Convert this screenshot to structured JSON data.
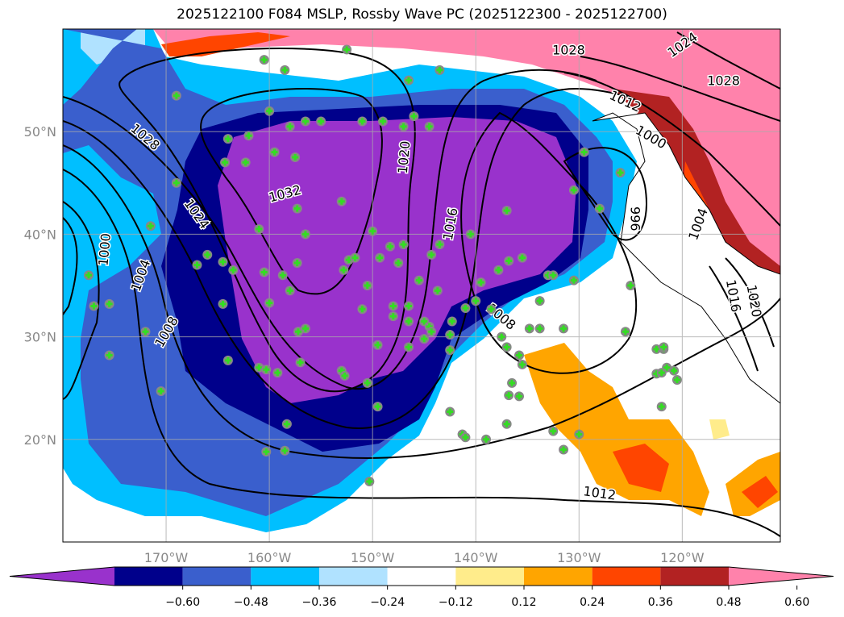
{
  "chart_data": {
    "type": "map-contour",
    "title": "2025122100 F084 MSLP, Rossby Wave PC (2025122300 - 2025122700)",
    "lon_range": [
      -180,
      -110.5
    ],
    "lat_range": [
      10,
      60
    ],
    "grid": true,
    "x_ticks": [
      {
        "lon": -170,
        "label": "170°W"
      },
      {
        "lon": -160,
        "label": "160°W"
      },
      {
        "lon": -150,
        "label": "150°W"
      },
      {
        "lon": -140,
        "label": "140°W"
      },
      {
        "lon": -130,
        "label": "130°W"
      },
      {
        "lon": -120,
        "label": "120°W"
      }
    ],
    "y_ticks": [
      {
        "lat": 50,
        "label": "50°N"
      },
      {
        "lat": 40,
        "label": "40°N"
      },
      {
        "lat": 30,
        "label": "30°N"
      },
      {
        "lat": 20,
        "label": "20°N"
      }
    ],
    "colorbar": {
      "position": "bottom",
      "extend": "both",
      "colors": [
        "#9932cc",
        "#00008b",
        "#3a5fcd",
        "#00bfff",
        "#b0e2ff",
        "#ffffff",
        "#ffec8b",
        "#ffa500",
        "#ff4500",
        "#b22222",
        "#ff82ab"
      ],
      "ticks": [
        "−0.60",
        "−0.48",
        "−0.36",
        "−0.24",
        "−0.12",
        "0.12",
        "0.24",
        "0.36",
        "0.48",
        "0.60"
      ]
    },
    "isobar_labels": [
      {
        "text": "1028",
        "lon": -172,
        "lat": 49.5,
        "rot": 40
      },
      {
        "text": "1024",
        "lon": -167,
        "lat": 42,
        "rot": 55
      },
      {
        "text": "1032",
        "lon": -158.5,
        "lat": 44,
        "rot": -15
      },
      {
        "text": "1020",
        "lon": -147,
        "lat": 47.5,
        "rot": -85
      },
      {
        "text": "1016",
        "lon": -142.5,
        "lat": 41,
        "rot": -80
      },
      {
        "text": "1008",
        "lon": -137.5,
        "lat": 32,
        "rot": 40
      },
      {
        "text": "1012",
        "lon": -128,
        "lat": 14.8,
        "rot": 8
      },
      {
        "text": "1004",
        "lon": -172.5,
        "lat": 36,
        "rot": -70
      },
      {
        "text": "1000",
        "lon": -176,
        "lat": 38.5,
        "rot": -85
      },
      {
        "text": "1008",
        "lon": -170,
        "lat": 30.5,
        "rot": -60
      },
      {
        "text": "996",
        "lon": -124.5,
        "lat": 41.5,
        "rot": 90
      },
      {
        "text": "1000",
        "lon": -123,
        "lat": 49.5,
        "rot": 30
      },
      {
        "text": "1012",
        "lon": -125.5,
        "lat": 53,
        "rot": 25
      },
      {
        "text": "1004",
        "lon": -118.5,
        "lat": 41,
        "rot": -70
      },
      {
        "text": "1016",
        "lon": -115,
        "lat": 34,
        "rot": 80
      },
      {
        "text": "1020",
        "lon": -113,
        "lat": 33.5,
        "rot": 80
      },
      {
        "text": "1028",
        "lon": -131,
        "lat": 58,
        "rot": 0
      },
      {
        "text": "1024",
        "lon": -120,
        "lat": 58.5,
        "rot": -35
      },
      {
        "text": "1028",
        "lon": -116,
        "lat": 55,
        "rot": 0
      }
    ],
    "markers": [
      [
        -160.5,
        57
      ],
      [
        -158.5,
        56
      ],
      [
        -146.5,
        55
      ],
      [
        -143.5,
        56
      ],
      [
        -152.5,
        58
      ],
      [
        -169,
        53.5
      ],
      [
        -160,
        52
      ],
      [
        -158,
        50.5
      ],
      [
        -156.5,
        51
      ],
      [
        -155,
        51
      ],
      [
        -151,
        51
      ],
      [
        -149,
        51
      ],
      [
        -146,
        51.5
      ],
      [
        -147,
        50.5
      ],
      [
        -144.5,
        50.5
      ],
      [
        -164,
        49.3
      ],
      [
        -162,
        49.6
      ],
      [
        -157.5,
        47.5
      ],
      [
        -159.5,
        48
      ],
      [
        -162.3,
        47
      ],
      [
        -164.3,
        47
      ],
      [
        -169,
        45
      ],
      [
        -153,
        43.2
      ],
      [
        -157.3,
        42.5
      ],
      [
        -161,
        40.5
      ],
      [
        -156.5,
        40
      ],
      [
        -150,
        40.3
      ],
      [
        -148.3,
        38.8
      ],
      [
        -147,
        39
      ],
      [
        -140.5,
        40
      ],
      [
        -143.5,
        39
      ],
      [
        -137,
        42.3
      ],
      [
        -166,
        38
      ],
      [
        -171.5,
        40.8
      ],
      [
        -167,
        37
      ],
      [
        -164.5,
        37.3
      ],
      [
        -163.5,
        36.5
      ],
      [
        -160.5,
        36.3
      ],
      [
        -158.7,
        36
      ],
      [
        -157.3,
        37.2
      ],
      [
        -152.8,
        36.5
      ],
      [
        -152.3,
        37.5
      ],
      [
        -151.7,
        37.7
      ],
      [
        -149.3,
        37.7
      ],
      [
        -147.5,
        37.2
      ],
      [
        -144.3,
        38
      ],
      [
        -145.5,
        35.5
      ],
      [
        -143.7,
        34.5
      ],
      [
        -139.5,
        35.3
      ],
      [
        -137.8,
        36.5
      ],
      [
        -136.8,
        37.4
      ],
      [
        -135.5,
        37.7
      ],
      [
        -133,
        36
      ],
      [
        -132.5,
        36
      ],
      [
        -130.5,
        35.5
      ],
      [
        -125,
        35
      ],
      [
        -177.5,
        36
      ],
      [
        -177,
        33
      ],
      [
        -175.5,
        33.2
      ],
      [
        -164.5,
        33.2
      ],
      [
        -160,
        33.3
      ],
      [
        -158,
        34.5
      ],
      [
        -150.5,
        35
      ],
      [
        -151,
        32.7
      ],
      [
        -148,
        33
      ],
      [
        -146.5,
        33
      ],
      [
        -148,
        32
      ],
      [
        -146.5,
        31.5
      ],
      [
        -145,
        31.5
      ],
      [
        -144.5,
        31
      ],
      [
        -144.3,
        30.5
      ],
      [
        -145,
        29.8
      ],
      [
        -142.3,
        31.5
      ],
      [
        -142.5,
        30.2
      ],
      [
        -141,
        32.8
      ],
      [
        -140,
        33.5
      ],
      [
        -138.5,
        32.7
      ],
      [
        -137.5,
        30
      ],
      [
        -137,
        29
      ],
      [
        -134.8,
        30.8
      ],
      [
        -133.8,
        30.8
      ],
      [
        -133.8,
        33.5
      ],
      [
        -131.5,
        30.8
      ],
      [
        -125.5,
        30.5
      ],
      [
        -175.5,
        28.2
      ],
      [
        -172,
        30.5
      ],
      [
        -170.5,
        24.7
      ],
      [
        -164,
        27.7
      ],
      [
        -161,
        27
      ],
      [
        -160.3,
        26.8
      ],
      [
        -159.2,
        26.5
      ],
      [
        -157,
        27.5
      ],
      [
        -156.5,
        30.8
      ],
      [
        -157.2,
        30.5
      ],
      [
        -153,
        26.7
      ],
      [
        -152.7,
        26.2
      ],
      [
        -150.5,
        25.5
      ],
      [
        -149.5,
        29.2
      ],
      [
        -149.5,
        23.2
      ],
      [
        -146.5,
        29
      ],
      [
        -142.5,
        28.7
      ],
      [
        -139,
        20
      ],
      [
        -135.8,
        28.2
      ],
      [
        -135.5,
        27.3
      ],
      [
        -136.5,
        25.5
      ],
      [
        -136.8,
        24.3
      ],
      [
        -135.8,
        24.2
      ],
      [
        -132.5,
        20.8
      ],
      [
        -131.5,
        19
      ],
      [
        -130,
        20.5
      ],
      [
        -137,
        21.5
      ],
      [
        -141.3,
        20.5
      ],
      [
        -141,
        20.2
      ],
      [
        -142.5,
        22.7
      ],
      [
        -158.3,
        21.5
      ],
      [
        -160.3,
        18.8
      ],
      [
        -158.5,
        18.9
      ],
      [
        -150.3,
        15.9
      ],
      [
        -122.5,
        28.8
      ],
      [
        -121.8,
        28.8
      ],
      [
        -121.8,
        29
      ],
      [
        -121.5,
        27
      ],
      [
        -120.8,
        26.7
      ],
      [
        -120.5,
        25.8
      ],
      [
        -122.5,
        26.4
      ],
      [
        -122,
        26.5
      ],
      [
        -122,
        23.2
      ],
      [
        -126,
        46
      ],
      [
        -129.5,
        48
      ],
      [
        -130.5,
        44.3
      ],
      [
        -128,
        42.5
      ]
    ]
  }
}
